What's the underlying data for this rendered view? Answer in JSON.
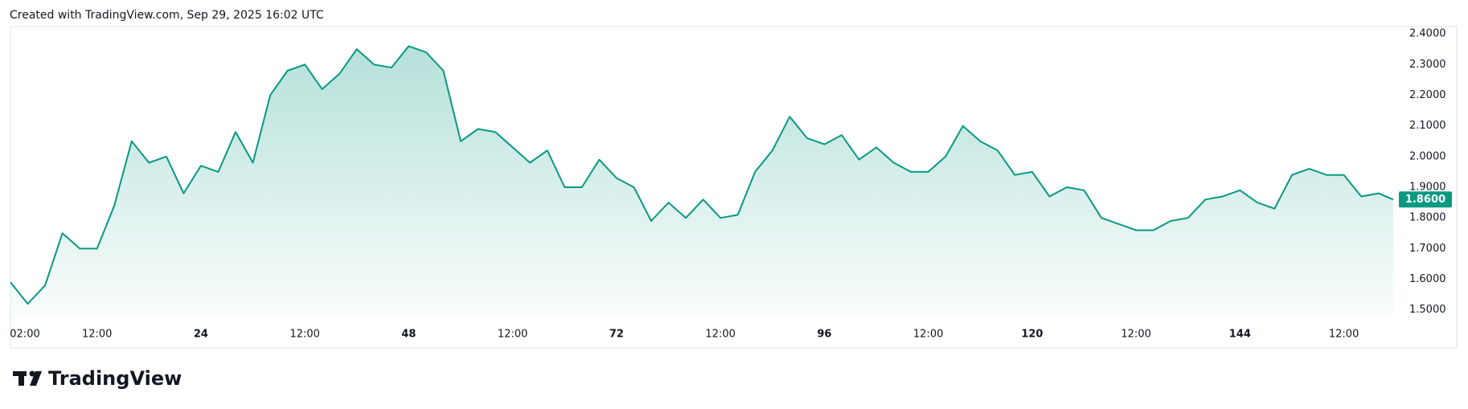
{
  "header": "Created with TradingView.com, Sep 29, 2025 16:02 UTC",
  "logo": "TradingView",
  "chart_data": {
    "type": "line",
    "x": [
      2,
      4,
      6,
      8,
      10,
      12,
      14,
      16,
      18,
      20,
      22,
      24,
      26,
      28,
      30,
      32,
      34,
      36,
      38,
      40,
      42,
      44,
      46,
      48,
      50,
      52,
      54,
      56,
      58,
      60,
      62,
      64,
      66,
      68,
      70,
      72,
      74,
      76,
      78,
      80,
      82,
      84,
      86,
      88,
      90,
      92,
      94,
      96,
      98,
      100,
      102,
      104,
      106,
      108,
      110,
      112,
      114,
      116,
      118,
      120,
      122,
      124,
      126,
      128,
      130,
      132,
      134,
      136,
      138,
      140,
      142,
      144,
      146,
      148,
      150,
      152,
      154,
      156,
      158,
      160,
      161.7
    ],
    "series": [
      {
        "color": "#089981",
        "values": [
          1.59,
          1.52,
          1.58,
          1.75,
          1.7,
          1.7,
          1.84,
          2.05,
          1.98,
          2.0,
          1.88,
          1.97,
          1.95,
          2.08,
          1.98,
          2.2,
          2.28,
          2.3,
          2.22,
          2.27,
          2.35,
          2.3,
          2.29,
          2.36,
          2.34,
          2.28,
          2.05,
          2.09,
          2.08,
          2.03,
          1.98,
          2.02,
          1.9,
          1.9,
          1.99,
          1.93,
          1.9,
          1.79,
          1.85,
          1.8,
          1.86,
          1.8,
          1.81,
          1.95,
          2.02,
          2.13,
          2.06,
          2.04,
          2.07,
          1.99,
          2.03,
          1.98,
          1.95,
          1.95,
          2.0,
          2.1,
          2.05,
          2.02,
          1.94,
          1.95,
          1.87,
          1.9,
          1.89,
          1.8,
          1.78,
          1.76,
          1.76,
          1.79,
          1.8,
          1.86,
          1.87,
          1.89,
          1.85,
          1.83,
          1.94,
          1.96,
          1.94,
          1.94,
          1.87,
          1.88,
          1.86
        ]
      }
    ],
    "price_label": {
      "value": 1.86,
      "label": "1.8600"
    },
    "xlim": [
      2,
      161.7
    ],
    "xticks": [
      {
        "value": 2,
        "label": "02:00"
      },
      {
        "value": 12,
        "label": "12:00"
      },
      24,
      {
        "value": 36,
        "label": "12:00"
      },
      48,
      {
        "value": 60,
        "label": "12:00"
      },
      72,
      {
        "value": 84,
        "label": "12:00"
      },
      96,
      {
        "value": 108,
        "label": "12:00"
      },
      120,
      {
        "value": 132,
        "label": "12:00"
      },
      144,
      {
        "value": 156,
        "label": "12:00"
      }
    ],
    "ylim": [
      1.473,
      2.424
    ],
    "yticks": [
      {
        "value": 1.5,
        "label": "1.5000"
      },
      {
        "value": 1.6,
        "label": "1.6000"
      },
      {
        "value": 1.7,
        "label": "1.7000"
      },
      {
        "value": 1.8,
        "label": "1.8000"
      },
      {
        "value": 1.9,
        "label": "1.9000"
      },
      {
        "value": 2.0,
        "label": "2.0000"
      },
      {
        "value": 2.1,
        "label": "2.1000"
      },
      {
        "value": 2.2,
        "label": "2.2000"
      },
      {
        "value": 2.3,
        "label": "2.3000"
      },
      {
        "value": 2.4,
        "label": "2.4000"
      }
    ]
  }
}
